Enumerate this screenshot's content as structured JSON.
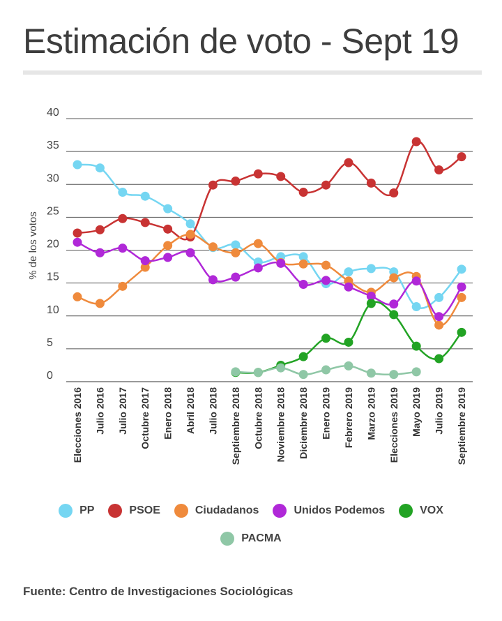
{
  "header": {
    "title": "Estimación de voto - Sept 19"
  },
  "footer": {
    "source": "Fuente: Centro de Investigaciones Sociológicas"
  },
  "chart_data": {
    "type": "line",
    "title": "Estimación de voto - Sept 19",
    "ylabel": "% de los votos",
    "xlabel": "",
    "ylim": [
      0,
      40
    ],
    "yticks": [
      0,
      5,
      10,
      15,
      20,
      25,
      30,
      35,
      40
    ],
    "grid": true,
    "legend_position": "bottom",
    "categories": [
      "Elecciones 2016",
      "Julio 2016",
      "Julio 2017",
      "Octubre 2017",
      "Enero 2018",
      "Abril 2018",
      "Julio 2018",
      "Septiembre 2018",
      "Octubre 2018",
      "Noviembre 2018",
      "Diciembre 2018",
      "Enero 2019",
      "Febrero 2019",
      "Marzo 2019",
      "Elecciones 2019",
      "Mayo 2019",
      "Julio 2019",
      "Septiembre 2019"
    ],
    "series": [
      {
        "name": "PP",
        "color": "#75d6f2",
        "values": [
          33.0,
          32.5,
          28.8,
          28.2,
          26.3,
          24.0,
          20.4,
          20.8,
          18.2,
          19.0,
          19.0,
          14.9,
          16.7,
          17.2,
          16.7,
          11.4,
          12.8,
          17.1
        ]
      },
      {
        "name": "PSOE",
        "color": "#c83333",
        "values": [
          22.6,
          23.1,
          24.8,
          24.2,
          23.2,
          22.0,
          29.9,
          30.5,
          31.6,
          31.2,
          28.8,
          29.9,
          33.3,
          30.2,
          28.7,
          36.5,
          32.2,
          34.2
        ]
      },
      {
        "name": "Ciudadanos",
        "color": "#ef8a3c",
        "values": [
          12.9,
          11.9,
          14.5,
          17.4,
          20.7,
          22.4,
          20.5,
          19.6,
          21.0,
          18.1,
          17.9,
          17.7,
          15.3,
          13.6,
          15.8,
          16.0,
          8.6,
          12.8
        ]
      },
      {
        "name": "Unidos Podemos",
        "color": "#b028d8",
        "values": [
          21.2,
          19.6,
          20.3,
          18.4,
          18.9,
          19.6,
          15.5,
          15.9,
          17.3,
          18.0,
          14.8,
          15.4,
          14.4,
          13.0,
          11.8,
          15.3,
          9.9,
          14.4
        ]
      },
      {
        "name": "VOX",
        "color": "#22a324",
        "values": [
          null,
          null,
          null,
          null,
          null,
          null,
          null,
          1.4,
          1.4,
          2.5,
          3.8,
          6.6,
          6.0,
          11.9,
          10.2,
          5.4,
          3.5,
          7.5
        ]
      },
      {
        "name": "PACMA",
        "color": "#8fc7a6",
        "values": [
          null,
          null,
          null,
          null,
          null,
          null,
          null,
          1.5,
          1.4,
          2.1,
          1.1,
          1.8,
          2.4,
          1.3,
          1.1,
          1.5,
          null,
          null
        ]
      }
    ]
  }
}
